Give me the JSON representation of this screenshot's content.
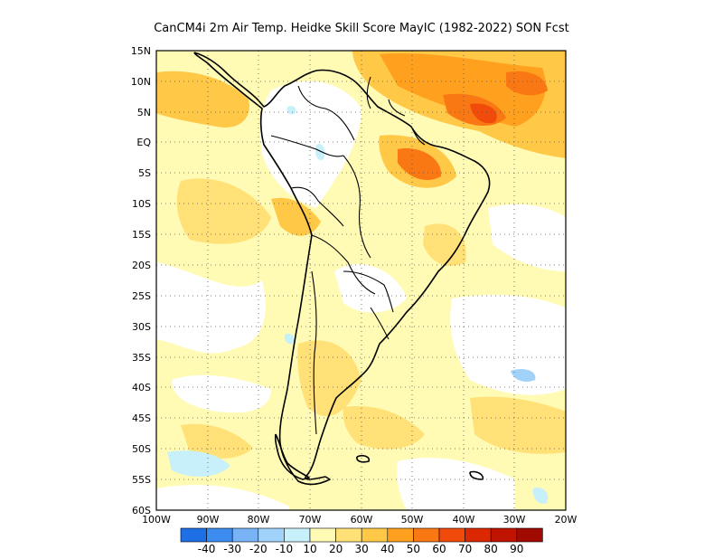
{
  "title": "CanCM4i  2m Air Temp. Heidke Skill Score MayIC (1982-2022) SON Fcst",
  "map": {
    "region": "South America",
    "lon_range": [
      -100,
      -20
    ],
    "lat_range": [
      -60,
      15
    ],
    "gridlines": "dotted",
    "lat_labels": [
      "15N",
      "10N",
      "5N",
      "EQ",
      "5S",
      "10S",
      "15S",
      "20S",
      "25S",
      "30S",
      "35S",
      "40S",
      "45S",
      "50S",
      "55S",
      "60S"
    ],
    "lon_labels": [
      "100W",
      "90W",
      "80W",
      "70W",
      "60W",
      "50W",
      "40W",
      "30W",
      "20W"
    ]
  },
  "colorbar": {
    "labels": [
      "-40",
      "-30",
      "-20",
      "-10",
      "10",
      "20",
      "30",
      "40",
      "50",
      "60",
      "70",
      "80",
      "90"
    ],
    "colors": [
      "#1e6ee6",
      "#3c8cf0",
      "#78b4f5",
      "#a0d2fa",
      "#c8f0fa",
      "#fffab4",
      "#ffe178",
      "#ffc846",
      "#ffa01e",
      "#fa7814",
      "#f04b0a",
      "#dc2800",
      "#c01400",
      "#a00a00"
    ]
  }
}
